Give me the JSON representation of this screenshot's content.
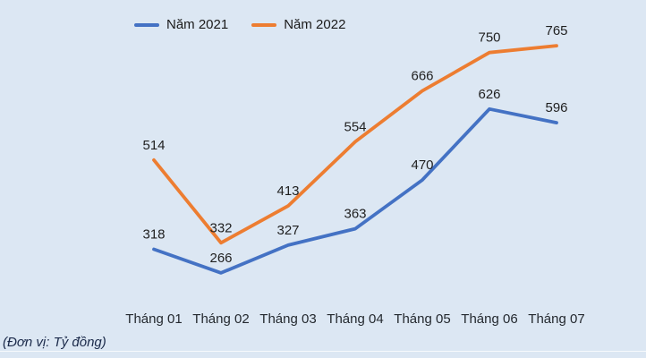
{
  "page": {
    "background_color": "#DCE7F3"
  },
  "unit_label": "(Đơn vị: Tỷ đồng)",
  "chart_data": {
    "type": "line",
    "title": "",
    "xlabel": "",
    "ylabel": "",
    "categories": [
      "Tháng 01",
      "Tháng 02",
      "Tháng 03",
      "Tháng 04",
      "Tháng 05",
      "Tháng 06",
      "Tháng 07"
    ],
    "series": [
      {
        "name": "Năm 2021",
        "color": "#4472C4",
        "values": [
          318,
          266,
          327,
          363,
          470,
          626,
          596
        ]
      },
      {
        "name": "Năm 2022",
        "color": "#ED7D31",
        "values": [
          514,
          332,
          413,
          554,
          666,
          750,
          765
        ]
      }
    ],
    "legend_position": "top",
    "grid": false,
    "data_labels": true,
    "ylim": [
      197,
      777
    ]
  }
}
